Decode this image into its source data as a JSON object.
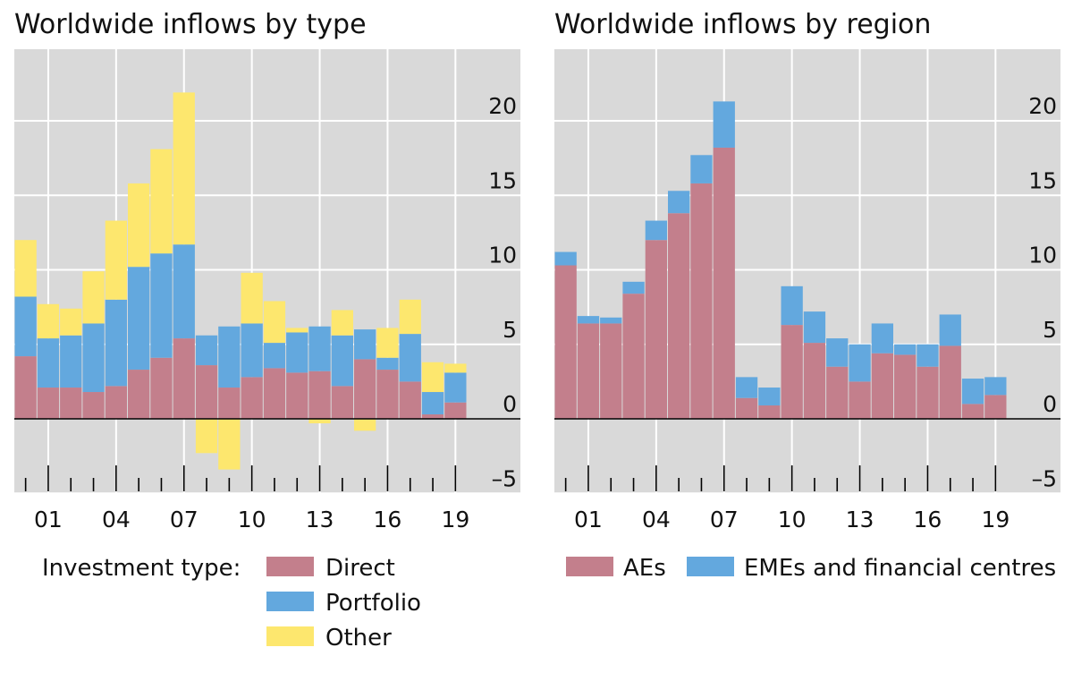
{
  "colors": {
    "direct": "#c37f8c",
    "portfolio": "#63a8de",
    "other": "#fde76e",
    "aes": "#c37f8c",
    "emes": "#63a8de",
    "plot_bg": "#d9d9d9",
    "grid": "#ffffff",
    "zero_line": "#000000"
  },
  "chart_data": [
    {
      "type": "bar",
      "stacked": true,
      "title": "Worldwide inflows by type",
      "years": [
        2000,
        2001,
        2002,
        2003,
        2004,
        2005,
        2006,
        2007,
        2008,
        2009,
        2010,
        2011,
        2012,
        2013,
        2014,
        2015,
        2016,
        2017,
        2018,
        2019
      ],
      "x_tick_labels": [
        "01",
        "04",
        "07",
        "10",
        "13",
        "16",
        "19"
      ],
      "y_ticks": [
        20,
        15,
        10,
        5,
        0,
        -5
      ],
      "y_tick_labels": [
        "20",
        "15",
        "10",
        "5",
        "0",
        "–5"
      ],
      "ylim": [
        -5,
        25
      ],
      "grid": true,
      "series": [
        {
          "name": "Direct",
          "color_key": "direct",
          "values": [
            4.2,
            2.1,
            2.1,
            1.8,
            2.2,
            3.3,
            4.1,
            5.4,
            3.6,
            2.1,
            2.8,
            3.4,
            3.1,
            3.2,
            2.2,
            4.0,
            3.3,
            2.5,
            0.3,
            1.1
          ]
        },
        {
          "name": "Portfolio",
          "color_key": "portfolio",
          "values": [
            4.0,
            3.3,
            3.5,
            4.6,
            5.8,
            6.9,
            7.0,
            6.3,
            2.0,
            4.1,
            3.6,
            1.7,
            2.7,
            3.0,
            3.4,
            2.0,
            0.8,
            3.2,
            1.5,
            2.0
          ]
        },
        {
          "name": "Other",
          "color_key": "other",
          "values": [
            3.8,
            2.3,
            1.8,
            3.5,
            5.3,
            5.6,
            7.0,
            10.2,
            -2.3,
            -3.4,
            3.4,
            2.8,
            0.3,
            -0.3,
            1.7,
            -0.8,
            2.0,
            2.3,
            2.0,
            0.6
          ]
        }
      ],
      "legend": {
        "placement": "bottom",
        "heading": "Investment type:",
        "items": [
          "Direct",
          "Portfolio",
          "Other"
        ]
      }
    },
    {
      "type": "bar",
      "stacked": true,
      "title": "Worldwide inflows by region",
      "years": [
        2000,
        2001,
        2002,
        2003,
        2004,
        2005,
        2006,
        2007,
        2008,
        2009,
        2010,
        2011,
        2012,
        2013,
        2014,
        2015,
        2016,
        2017,
        2018,
        2019
      ],
      "x_tick_labels": [
        "01",
        "04",
        "07",
        "10",
        "13",
        "16",
        "19"
      ],
      "y_ticks": [
        20,
        15,
        10,
        5,
        0,
        -5
      ],
      "y_tick_labels": [
        "20",
        "15",
        "10",
        "5",
        "0",
        "–5"
      ],
      "ylim": [
        -5,
        25
      ],
      "grid": true,
      "series": [
        {
          "name": "AEs",
          "color_key": "aes",
          "values": [
            10.3,
            6.4,
            6.4,
            8.4,
            12.0,
            13.8,
            15.8,
            18.2,
            1.4,
            0.9,
            6.3,
            5.1,
            3.5,
            2.5,
            4.4,
            4.3,
            3.5,
            4.9,
            1.0,
            1.6
          ]
        },
        {
          "name": "EMEs and financial centres",
          "color_key": "emes",
          "values": [
            0.9,
            0.5,
            0.4,
            0.8,
            1.3,
            1.5,
            1.9,
            3.1,
            1.4,
            1.2,
            2.6,
            2.1,
            1.9,
            2.5,
            2.0,
            0.7,
            1.5,
            2.1,
            1.7,
            1.2
          ]
        }
      ],
      "legend": {
        "placement": "bottom",
        "items": [
          "AEs",
          "EMEs and financial centres"
        ]
      }
    }
  ]
}
